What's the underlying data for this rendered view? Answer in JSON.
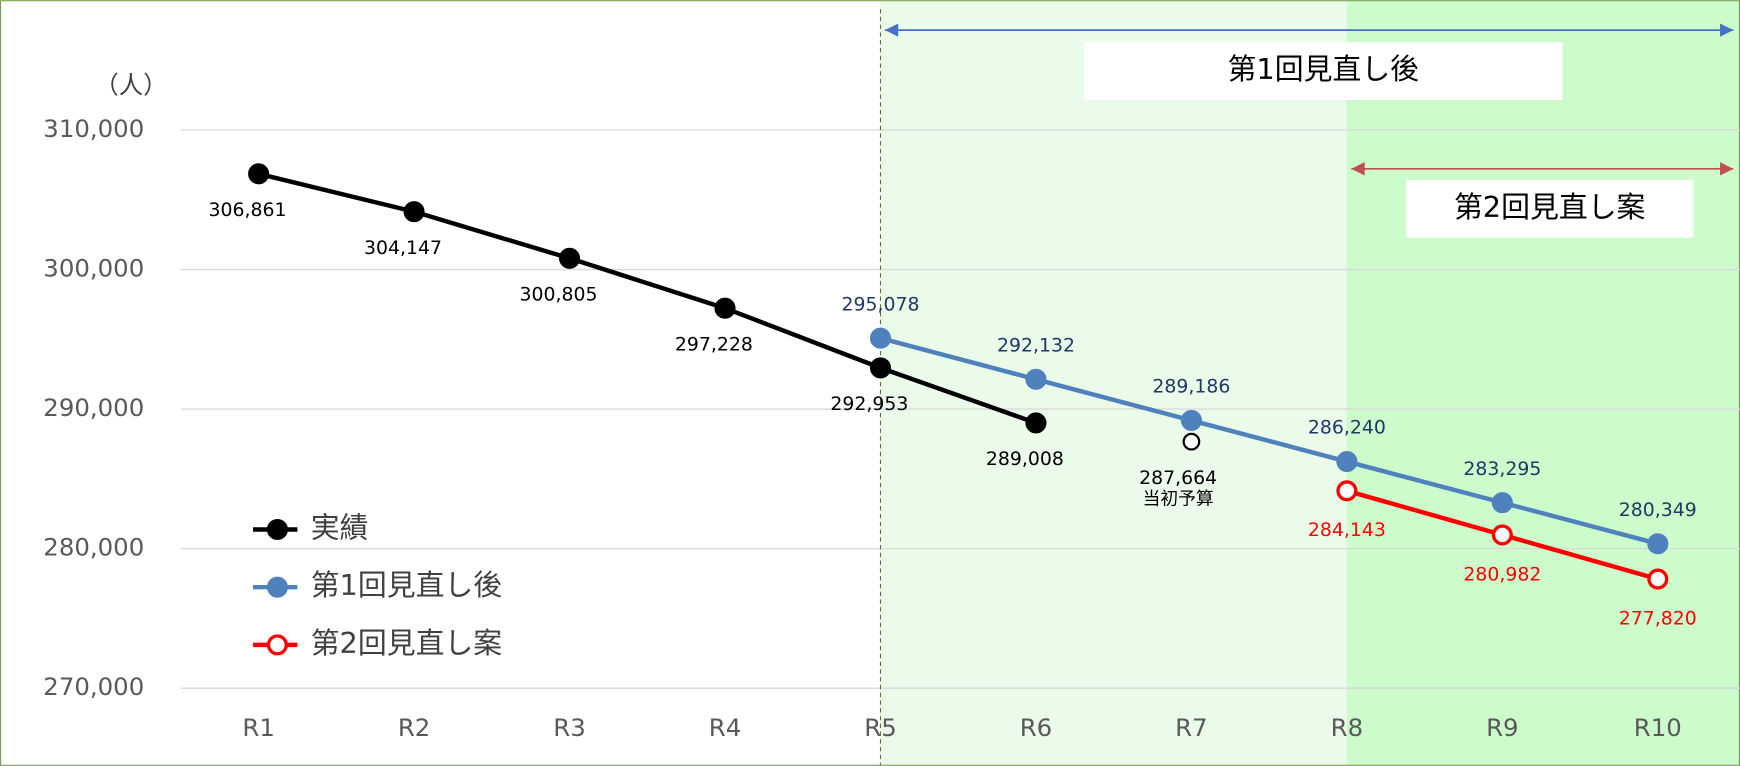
{
  "chart_data": {
    "type": "line",
    "y_label": "（人）",
    "categories": [
      "R1",
      "R2",
      "R3",
      "R4",
      "R5",
      "R6",
      "R7",
      "R8",
      "R9",
      "R10"
    ],
    "series": [
      {
        "name": "実績",
        "color": "#000000",
        "marker_fill": "#000000",
        "values": [
          306861,
          304147,
          300805,
          297228,
          292953,
          289008,
          null,
          null,
          null,
          null
        ],
        "value_labels": [
          "306,861",
          "304,147",
          "300,805",
          "297,228",
          "292,953",
          "289,008",
          null,
          null,
          null,
          null
        ],
        "label_color": "#000000"
      },
      {
        "name": "第1回見直し後",
        "color": "#4f81bd",
        "marker_fill": "#4f81bd",
        "values": [
          null,
          null,
          null,
          null,
          295078,
          292132,
          289186,
          286240,
          283295,
          280349
        ],
        "value_labels": [
          null,
          null,
          null,
          null,
          "295,078",
          "292,132",
          "289,186",
          "286,240",
          "283,295",
          "280,349"
        ],
        "label_color": "#1f3864"
      },
      {
        "name": "第2回見直し案",
        "color": "#ff0000",
        "marker_fill": "#ffffff",
        "values": [
          null,
          null,
          null,
          null,
          null,
          null,
          null,
          284143,
          280982,
          277820
        ],
        "value_labels": [
          null,
          null,
          null,
          null,
          null,
          null,
          null,
          "284,143",
          "280,982",
          "277,820"
        ],
        "label_color": "#ff0000"
      }
    ],
    "annotations": [
      {
        "x": "R7",
        "value": 287664,
        "value_label": "287,664",
        "text": "当初予算"
      }
    ],
    "regions": [
      {
        "label": "第1回見直し後",
        "from": "R5",
        "color": "#eafbe9",
        "arrow_color": "#4472c4"
      },
      {
        "label": "第2回見直し案",
        "from": "R8",
        "color": "#ccfccb",
        "arrow_color": "#c0504d"
      }
    ],
    "ylim": [
      270000,
      310000
    ],
    "yticks": [
      {
        "value": 270000,
        "label": "270,000"
      },
      {
        "value": 280000,
        "label": "280,000"
      },
      {
        "value": 290000,
        "label": "290,000"
      },
      {
        "value": 300000,
        "label": "300,000"
      },
      {
        "value": 310000,
        "label": "310,000"
      }
    ],
    "grid": true
  }
}
